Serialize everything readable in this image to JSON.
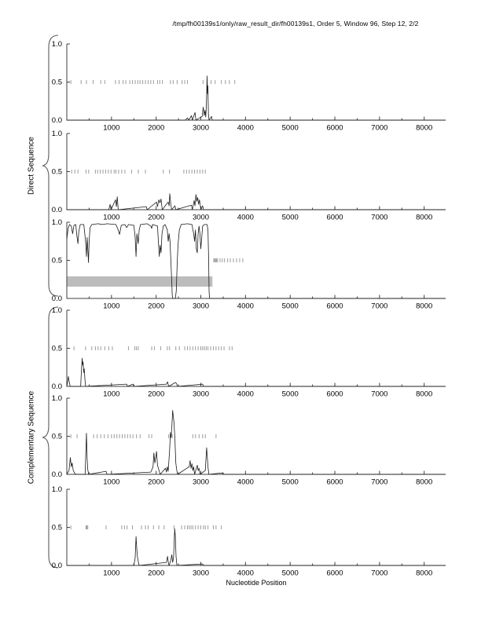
{
  "page": {
    "title": "/tmp/fh00139s1/only/raw_result_dir/fh00139s1, Order 5, Window 96, Step 12, 2/2"
  },
  "groups": [
    {
      "label": "Direct Sequence",
      "plots": [
        0,
        1,
        2
      ]
    },
    {
      "label": "Complementary Sequence",
      "plots": [
        3,
        4,
        5
      ]
    }
  ],
  "xlabel": "Nucleotide Position",
  "colors": {
    "curve": "#1a1a1a",
    "orf_marker": "#9b9b9b",
    "axis": "#3f3f3f",
    "coding_bar": "#bcbcbc",
    "text": "#000000",
    "background": "#ffffff"
  },
  "chart_data": [
    {
      "name": "direct-frame-1",
      "type": "line",
      "group": "Direct Sequence",
      "xlim": [
        0,
        8480
      ],
      "ylim": [
        0,
        1
      ],
      "x_major_ticks": [
        1000,
        2000,
        3000,
        4000,
        5000,
        6000,
        7000,
        8000
      ],
      "x_minor_step": 500,
      "y_ticks": [
        0,
        0.5,
        1
      ],
      "y_tick_labels": [
        "0.0",
        "0.5",
        "1.0"
      ],
      "orf_marker_y": 0.5,
      "orf_markers_x": [
        90,
        320,
        440,
        590,
        760,
        850,
        1090,
        1170,
        1260,
        1320,
        1410,
        1470,
        1530,
        1590,
        1640,
        1700,
        1760,
        1820,
        1880,
        1940,
        2030,
        2080,
        2140,
        2320,
        2380,
        2470,
        2580,
        2640,
        2700,
        3050,
        3140,
        3230,
        3320,
        3460,
        3550,
        3640,
        3760
      ],
      "curve": [
        [
          0,
          0
        ],
        [
          2650,
          0
        ],
        [
          2700,
          0.03
        ],
        [
          2730,
          0
        ],
        [
          2790,
          0.06
        ],
        [
          2810,
          0
        ],
        [
          2870,
          0.1
        ],
        [
          2890,
          0
        ],
        [
          3030,
          0.05
        ],
        [
          3055,
          0.17
        ],
        [
          3075,
          0.06
        ],
        [
          3095,
          0.13
        ],
        [
          3110,
          0.04
        ],
        [
          3125,
          0.2
        ],
        [
          3140,
          0.58
        ],
        [
          3150,
          0.35
        ],
        [
          3158,
          0.45
        ],
        [
          3170,
          0.08
        ],
        [
          3185,
          0
        ],
        [
          3240,
          0.05
        ],
        [
          3255,
          0
        ],
        [
          8480,
          0
        ]
      ]
    },
    {
      "name": "direct-frame-2",
      "type": "line",
      "group": "Direct Sequence",
      "xlim": [
        0,
        8480
      ],
      "ylim": [
        0,
        1
      ],
      "x_major_ticks": [
        1000,
        2000,
        3000,
        4000,
        5000,
        6000,
        7000,
        8000
      ],
      "x_minor_step": 500,
      "y_ticks": [
        0,
        0.5,
        1
      ],
      "y_tick_labels": [
        "0.0",
        "0.5",
        "1.0"
      ],
      "orf_marker_y": 0.5,
      "orf_markers_x": [
        110,
        180,
        250,
        430,
        490,
        640,
        690,
        750,
        810,
        870,
        930,
        990,
        1060,
        1100,
        1160,
        1230,
        1300,
        1450,
        1600,
        1760,
        2160,
        2300,
        2620,
        2680,
        2740,
        2800,
        2860,
        2920,
        2980,
        3040,
        3100
      ],
      "curve": [
        [
          0,
          0
        ],
        [
          940,
          0
        ],
        [
          970,
          0.07
        ],
        [
          990,
          0
        ],
        [
          1090,
          0.13
        ],
        [
          1110,
          0.04
        ],
        [
          1130,
          0.17
        ],
        [
          1150,
          0
        ],
        [
          1780,
          0.04
        ],
        [
          1800,
          0
        ],
        [
          2010,
          0.1
        ],
        [
          2030,
          0.04
        ],
        [
          2060,
          0.13
        ],
        [
          2085,
          0.09
        ],
        [
          2110,
          0.14
        ],
        [
          2135,
          0
        ],
        [
          2270,
          0.1
        ],
        [
          2290,
          0.05
        ],
        [
          2305,
          0.21
        ],
        [
          2325,
          0.08
        ],
        [
          2345,
          0
        ],
        [
          2420,
          0.05
        ],
        [
          2440,
          0
        ],
        [
          2790,
          0.06
        ],
        [
          2810,
          0
        ],
        [
          2850,
          0.12
        ],
        [
          2870,
          0.05
        ],
        [
          2890,
          0.2
        ],
        [
          2910,
          0.11
        ],
        [
          2930,
          0.16
        ],
        [
          2950,
          0.07
        ],
        [
          2970,
          0.13
        ],
        [
          3000,
          0
        ],
        [
          3040,
          0.05
        ],
        [
          3060,
          0
        ],
        [
          8480,
          0
        ]
      ]
    },
    {
      "name": "direct-frame-3",
      "type": "line",
      "group": "Direct Sequence",
      "xlim": [
        0,
        8480
      ],
      "ylim": [
        0,
        1
      ],
      "x_major_ticks": [
        1000,
        2000,
        3000,
        4000,
        5000,
        6000,
        7000,
        8000
      ],
      "x_minor_step": 500,
      "y_ticks": [
        0,
        0.5,
        1
      ],
      "y_tick_labels": [
        "0.0",
        "0.5",
        "1.0"
      ],
      "orf_marker_y": 0.5,
      "orf_markers_x": [
        3290,
        3310,
        3330,
        3350,
        3375,
        3430,
        3480,
        3530,
        3600,
        3660,
        3730,
        3800,
        3870,
        3940
      ],
      "coding_bar": {
        "x": [
          0,
          3260
        ],
        "y": [
          0.155,
          0.29
        ]
      },
      "curve": [
        [
          0,
          0.78
        ],
        [
          30,
          0.92
        ],
        [
          60,
          0.97
        ],
        [
          100,
          0.95
        ],
        [
          130,
          0.85
        ],
        [
          160,
          0.96
        ],
        [
          200,
          0.97
        ],
        [
          230,
          0.8
        ],
        [
          250,
          0.72
        ],
        [
          270,
          0.88
        ],
        [
          300,
          0.97
        ],
        [
          380,
          0.97
        ],
        [
          420,
          0.75
        ],
        [
          440,
          0.55
        ],
        [
          455,
          0.8
        ],
        [
          470,
          0.65
        ],
        [
          485,
          0.47
        ],
        [
          500,
          0.75
        ],
        [
          520,
          0.93
        ],
        [
          560,
          0.97
        ],
        [
          700,
          0.98
        ],
        [
          800,
          0.97
        ],
        [
          900,
          0.98
        ],
        [
          1100,
          0.97
        ],
        [
          1150,
          0.9
        ],
        [
          1180,
          0.84
        ],
        [
          1220,
          0.96
        ],
        [
          1300,
          0.97
        ],
        [
          1340,
          0.93
        ],
        [
          1380,
          0.97
        ],
        [
          1500,
          0.96
        ],
        [
          1530,
          0.8
        ],
        [
          1550,
          0.55
        ],
        [
          1570,
          0.85
        ],
        [
          1600,
          0.72
        ],
        [
          1620,
          0.9
        ],
        [
          1650,
          0.97
        ],
        [
          1800,
          0.98
        ],
        [
          1880,
          0.95
        ],
        [
          1900,
          0.92
        ],
        [
          1920,
          0.97
        ],
        [
          2030,
          0.95
        ],
        [
          2050,
          0.75
        ],
        [
          2070,
          0.55
        ],
        [
          2090,
          0.7
        ],
        [
          2110,
          0.6
        ],
        [
          2130,
          0.85
        ],
        [
          2160,
          0.95
        ],
        [
          2200,
          0.97
        ],
        [
          2250,
          0.9
        ],
        [
          2270,
          0.75
        ],
        [
          2290,
          0.85
        ],
        [
          2310,
          0.75
        ],
        [
          2330,
          0.5
        ],
        [
          2350,
          0.2
        ],
        [
          2360,
          0.05
        ],
        [
          2370,
          0
        ],
        [
          2430,
          0
        ],
        [
          2450,
          0.1
        ],
        [
          2470,
          0.45
        ],
        [
          2490,
          0.7
        ],
        [
          2520,
          0.9
        ],
        [
          2560,
          0.97
        ],
        [
          2700,
          0.98
        ],
        [
          2800,
          0.97
        ],
        [
          2840,
          0.85
        ],
        [
          2860,
          0.75
        ],
        [
          2880,
          0.9
        ],
        [
          2900,
          0.65
        ],
        [
          2920,
          0.6
        ],
        [
          2940,
          0.85
        ],
        [
          2960,
          0.95
        ],
        [
          2980,
          0.85
        ],
        [
          3000,
          0.65
        ],
        [
          3020,
          0.8
        ],
        [
          3040,
          0.95
        ],
        [
          3080,
          0.97
        ],
        [
          3140,
          0.97
        ],
        [
          3160,
          0.9
        ],
        [
          3175,
          0.5
        ],
        [
          3185,
          0.1
        ],
        [
          3195,
          0
        ],
        [
          8480,
          0
        ]
      ]
    },
    {
      "name": "complementary-frame-1",
      "type": "line",
      "group": "Complementary Sequence",
      "xlim": [
        0,
        8480
      ],
      "ylim": [
        0,
        1
      ],
      "x_major_ticks": [
        1000,
        2000,
        3000,
        4000,
        5000,
        6000,
        7000,
        8000
      ],
      "x_minor_step": 500,
      "y_ticks": [
        0,
        0.5,
        1
      ],
      "y_tick_labels": [
        "0.0",
        "0.5",
        "1.0"
      ],
      "orf_marker_y": 0.5,
      "orf_markers_x": [
        160,
        420,
        560,
        640,
        700,
        760,
        850,
        940,
        1020,
        1380,
        1520,
        1560,
        1600,
        1900,
        1960,
        2100,
        2250,
        2300,
        2440,
        2520,
        2640,
        2700,
        2760,
        2820,
        2880,
        2940,
        3000,
        3040,
        3080,
        3120,
        3160,
        3220,
        3280,
        3340,
        3400,
        3460,
        3520,
        3640,
        3700
      ],
      "curve": [
        [
          0,
          0
        ],
        [
          15,
          0.05
        ],
        [
          35,
          0.13
        ],
        [
          55,
          0.06
        ],
        [
          75,
          0
        ],
        [
          310,
          0
        ],
        [
          330,
          0.24
        ],
        [
          345,
          0.37
        ],
        [
          355,
          0.28
        ],
        [
          365,
          0.32
        ],
        [
          380,
          0.18
        ],
        [
          390,
          0.23
        ],
        [
          405,
          0.1
        ],
        [
          420,
          0
        ],
        [
          1340,
          0.03
        ],
        [
          1360,
          0
        ],
        [
          1480,
          0.03
        ],
        [
          1500,
          0
        ],
        [
          2230,
          0.03
        ],
        [
          2255,
          0.06
        ],
        [
          2280,
          0
        ],
        [
          2430,
          0.05
        ],
        [
          2455,
          0.04
        ],
        [
          2480,
          0
        ],
        [
          3040,
          0.03
        ],
        [
          3060,
          0
        ],
        [
          8480,
          0
        ]
      ]
    },
    {
      "name": "complementary-frame-2",
      "type": "line",
      "group": "Complementary Sequence",
      "xlim": [
        0,
        8480
      ],
      "ylim": [
        0,
        1
      ],
      "x_major_ticks": [
        1000,
        2000,
        3000,
        4000,
        5000,
        6000,
        7000,
        8000
      ],
      "x_minor_step": 500,
      "y_ticks": [
        0,
        0.5,
        1
      ],
      "y_tick_labels": [
        "0.0",
        "0.5",
        "1.0"
      ],
      "orf_marker_y": 0.5,
      "orf_markers_x": [
        90,
        230,
        440,
        600,
        680,
        760,
        840,
        920,
        1000,
        1060,
        1120,
        1180,
        1240,
        1300,
        1360,
        1420,
        1480,
        1560,
        1640,
        1840,
        1900,
        2280,
        2360,
        2820,
        2880,
        2960,
        3040,
        3100,
        3340
      ],
      "curve": [
        [
          0,
          0
        ],
        [
          50,
          0.05
        ],
        [
          80,
          0.22
        ],
        [
          100,
          0.1
        ],
        [
          120,
          0.15
        ],
        [
          145,
          0.05
        ],
        [
          170,
          0.02
        ],
        [
          200,
          0
        ],
        [
          410,
          0
        ],
        [
          425,
          0.28
        ],
        [
          440,
          0.54
        ],
        [
          455,
          0.2
        ],
        [
          470,
          0.06
        ],
        [
          490,
          0
        ],
        [
          880,
          0.04
        ],
        [
          900,
          0
        ],
        [
          1880,
          0.03
        ],
        [
          1930,
          0.1
        ],
        [
          1950,
          0.28
        ],
        [
          1970,
          0.15
        ],
        [
          1990,
          0.22
        ],
        [
          2010,
          0.3
        ],
        [
          2030,
          0.12
        ],
        [
          2060,
          0.06
        ],
        [
          2090,
          0
        ],
        [
          2210,
          0.08
        ],
        [
          2230,
          0.03
        ],
        [
          2250,
          0.1
        ],
        [
          2270,
          0.04
        ],
        [
          2300,
          0.3
        ],
        [
          2320,
          0.55
        ],
        [
          2335,
          0.48
        ],
        [
          2350,
          0.62
        ],
        [
          2370,
          0.84
        ],
        [
          2385,
          0.75
        ],
        [
          2400,
          0.68
        ],
        [
          2420,
          0.45
        ],
        [
          2440,
          0.15
        ],
        [
          2460,
          0.06
        ],
        [
          2480,
          0
        ],
        [
          2740,
          0.1
        ],
        [
          2760,
          0.18
        ],
        [
          2780,
          0.08
        ],
        [
          2800,
          0.14
        ],
        [
          2820,
          0.05
        ],
        [
          2840,
          0.1
        ],
        [
          2860,
          0
        ],
        [
          2920,
          0.12
        ],
        [
          2940,
          0.05
        ],
        [
          2960,
          0.08
        ],
        [
          2980,
          0
        ],
        [
          3100,
          0.05
        ],
        [
          3130,
          0.35
        ],
        [
          3145,
          0.22
        ],
        [
          3160,
          0.1
        ],
        [
          3180,
          0
        ],
        [
          3480,
          0.02
        ],
        [
          3500,
          0
        ],
        [
          8480,
          0
        ]
      ]
    },
    {
      "name": "complementary-frame-3",
      "type": "line",
      "group": "Complementary Sequence",
      "xlim": [
        0,
        8480
      ],
      "ylim": [
        0,
        1
      ],
      "x_major_ticks": [
        1000,
        2000,
        3000,
        4000,
        5000,
        6000,
        7000,
        8000
      ],
      "x_minor_step": 500,
      "y_ticks": [
        0,
        0.5,
        1
      ],
      "y_tick_labels": [
        "0.0",
        "0.5",
        "1.0"
      ],
      "orf_marker_y": 0.5,
      "orf_markers_x": [
        90,
        430,
        450,
        470,
        880,
        1230,
        1290,
        1350,
        1470,
        1670,
        1760,
        1820,
        1940,
        2060,
        2180,
        2400,
        2570,
        2640,
        2700,
        2740,
        2780,
        2820,
        2880,
        2940,
        3000,
        3060,
        3100,
        3160,
        3280,
        3340,
        3460
      ],
      "curve": [
        [
          0,
          0
        ],
        [
          1500,
          0
        ],
        [
          1530,
          0.1
        ],
        [
          1550,
          0.38
        ],
        [
          1565,
          0.22
        ],
        [
          1580,
          0.12
        ],
        [
          1600,
          0.05
        ],
        [
          1620,
          0
        ],
        [
          2230,
          0.04
        ],
        [
          2255,
          0.12
        ],
        [
          2275,
          0.03
        ],
        [
          2290,
          0
        ],
        [
          2330,
          0.07
        ],
        [
          2350,
          0.14
        ],
        [
          2370,
          0.04
        ],
        [
          2390,
          0.1
        ],
        [
          2415,
          0.48
        ],
        [
          2430,
          0.38
        ],
        [
          2445,
          0.12
        ],
        [
          2465,
          0
        ],
        [
          3040,
          0.02
        ],
        [
          3060,
          0
        ],
        [
          8480,
          0
        ]
      ]
    }
  ]
}
